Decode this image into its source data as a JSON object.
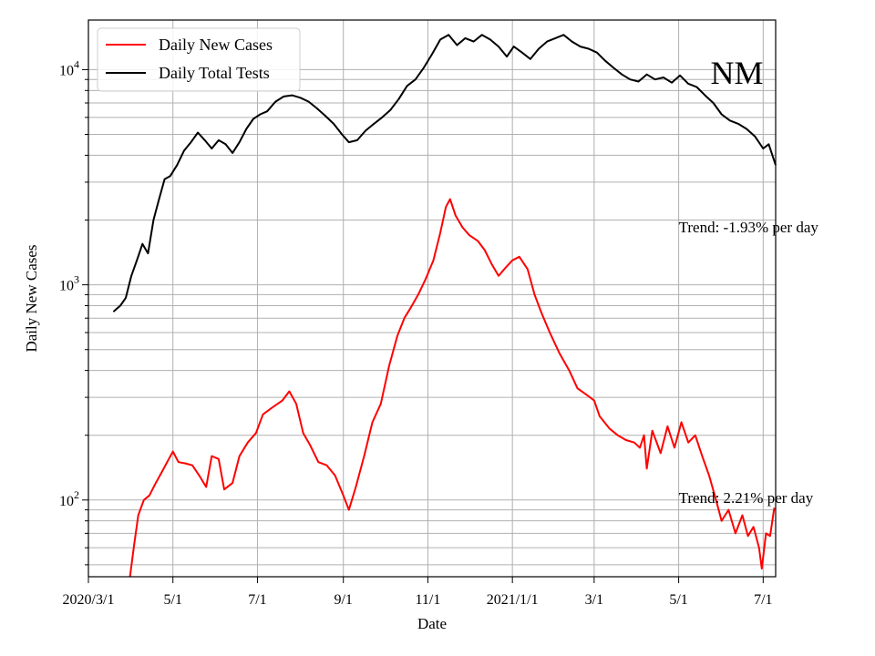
{
  "chart_data": {
    "type": "line",
    "xlabel": "Date",
    "ylabel": "Daily New Cases",
    "yscale": "log",
    "ylim": [
      44,
      17000
    ],
    "xlim": [
      "2020-03-01",
      "2021-07-10"
    ],
    "grid": true,
    "legend_position": "top-left",
    "x_ticks": [
      {
        "date": "2020-03-01",
        "label": "2020/3/1"
      },
      {
        "date": "2020-05-01",
        "label": "5/1"
      },
      {
        "date": "2020-07-01",
        "label": "7/1"
      },
      {
        "date": "2020-09-01",
        "label": "9/1"
      },
      {
        "date": "2020-11-01",
        "label": "11/1"
      },
      {
        "date": "2021-01-01",
        "label": "2021/1/1"
      },
      {
        "date": "2021-03-01",
        "label": "3/1"
      },
      {
        "date": "2021-05-01",
        "label": "5/1"
      },
      {
        "date": "2021-07-01",
        "label": "7/1"
      }
    ],
    "y_ticks": [
      {
        "value": 100,
        "base": "10",
        "exp": "2"
      },
      {
        "value": 1000,
        "base": "10",
        "exp": "3"
      },
      {
        "value": 10000,
        "base": "10",
        "exp": "4"
      }
    ],
    "series": [
      {
        "name": "Daily New Cases",
        "color": "#ff0000",
        "points": [
          [
            "2020-03-31",
            44
          ],
          [
            "2020-04-03",
            62
          ],
          [
            "2020-04-06",
            85
          ],
          [
            "2020-04-10",
            100
          ],
          [
            "2020-04-14",
            105
          ],
          [
            "2020-04-18",
            118
          ],
          [
            "2020-04-23",
            135
          ],
          [
            "2020-04-28",
            155
          ],
          [
            "2020-05-01",
            168
          ],
          [
            "2020-05-05",
            150
          ],
          [
            "2020-05-10",
            148
          ],
          [
            "2020-05-15",
            145
          ],
          [
            "2020-05-20",
            130
          ],
          [
            "2020-05-25",
            115
          ],
          [
            "2020-05-29",
            160
          ],
          [
            "2020-06-03",
            155
          ],
          [
            "2020-06-07",
            112
          ],
          [
            "2020-06-13",
            120
          ],
          [
            "2020-06-18",
            160
          ],
          [
            "2020-06-24",
            185
          ],
          [
            "2020-06-30",
            205
          ],
          [
            "2020-07-05",
            250
          ],
          [
            "2020-07-12",
            270
          ],
          [
            "2020-07-19",
            290
          ],
          [
            "2020-07-24",
            320
          ],
          [
            "2020-07-29",
            280
          ],
          [
            "2020-08-03",
            205
          ],
          [
            "2020-08-08",
            180
          ],
          [
            "2020-08-14",
            150
          ],
          [
            "2020-08-20",
            145
          ],
          [
            "2020-08-26",
            130
          ],
          [
            "2020-09-01",
            105
          ],
          [
            "2020-09-05",
            90
          ],
          [
            "2020-09-10",
            115
          ],
          [
            "2020-09-16",
            160
          ],
          [
            "2020-09-22",
            230
          ],
          [
            "2020-09-28",
            280
          ],
          [
            "2020-10-04",
            420
          ],
          [
            "2020-10-10",
            580
          ],
          [
            "2020-10-15",
            700
          ],
          [
            "2020-10-20",
            790
          ],
          [
            "2020-10-25",
            900
          ],
          [
            "2020-10-30",
            1050
          ],
          [
            "2020-11-05",
            1300
          ],
          [
            "2020-11-10",
            1750
          ],
          [
            "2020-11-14",
            2300
          ],
          [
            "2020-11-17",
            2500
          ],
          [
            "2020-11-21",
            2100
          ],
          [
            "2020-11-26",
            1850
          ],
          [
            "2020-12-01",
            1700
          ],
          [
            "2020-12-07",
            1600
          ],
          [
            "2020-12-12",
            1450
          ],
          [
            "2020-12-17",
            1250
          ],
          [
            "2020-12-22",
            1100
          ],
          [
            "2020-12-27",
            1200
          ],
          [
            "2021-01-01",
            1300
          ],
          [
            "2021-01-06",
            1350
          ],
          [
            "2021-01-12",
            1180
          ],
          [
            "2021-01-17",
            900
          ],
          [
            "2021-01-22",
            740
          ],
          [
            "2021-01-28",
            600
          ],
          [
            "2021-02-04",
            480
          ],
          [
            "2021-02-11",
            400
          ],
          [
            "2021-02-17",
            330
          ],
          [
            "2021-02-23",
            310
          ],
          [
            "2021-03-01",
            290
          ],
          [
            "2021-03-05",
            245
          ],
          [
            "2021-03-12",
            215
          ],
          [
            "2021-03-18",
            200
          ],
          [
            "2021-03-24",
            190
          ],
          [
            "2021-03-30",
            185
          ],
          [
            "2021-04-03",
            175
          ],
          [
            "2021-04-06",
            200
          ],
          [
            "2021-04-08",
            140
          ],
          [
            "2021-04-12",
            210
          ],
          [
            "2021-04-18",
            165
          ],
          [
            "2021-04-23",
            220
          ],
          [
            "2021-04-28",
            175
          ],
          [
            "2021-05-03",
            230
          ],
          [
            "2021-05-08",
            185
          ],
          [
            "2021-05-13",
            200
          ],
          [
            "2021-05-18",
            160
          ],
          [
            "2021-05-23",
            130
          ],
          [
            "2021-05-28",
            100
          ],
          [
            "2021-06-01",
            80
          ],
          [
            "2021-06-06",
            90
          ],
          [
            "2021-06-11",
            70
          ],
          [
            "2021-06-16",
            85
          ],
          [
            "2021-06-20",
            68
          ],
          [
            "2021-06-24",
            75
          ],
          [
            "2021-06-28",
            60
          ],
          [
            "2021-06-30",
            48
          ],
          [
            "2021-07-03",
            70
          ],
          [
            "2021-07-06",
            68
          ],
          [
            "2021-07-09",
            92
          ]
        ]
      },
      {
        "name": "Daily Total Tests",
        "color": "#000000",
        "points": [
          [
            "2020-03-19",
            750
          ],
          [
            "2020-03-24",
            800
          ],
          [
            "2020-03-28",
            870
          ],
          [
            "2020-04-01",
            1100
          ],
          [
            "2020-04-05",
            1300
          ],
          [
            "2020-04-09",
            1550
          ],
          [
            "2020-04-13",
            1400
          ],
          [
            "2020-04-17",
            2000
          ],
          [
            "2020-04-21",
            2500
          ],
          [
            "2020-04-25",
            3100
          ],
          [
            "2020-04-29",
            3200
          ],
          [
            "2020-05-04",
            3600
          ],
          [
            "2020-05-09",
            4200
          ],
          [
            "2020-05-14",
            4600
          ],
          [
            "2020-05-19",
            5100
          ],
          [
            "2020-05-24",
            4700
          ],
          [
            "2020-05-29",
            4300
          ],
          [
            "2020-06-03",
            4700
          ],
          [
            "2020-06-08",
            4500
          ],
          [
            "2020-06-13",
            4100
          ],
          [
            "2020-06-18",
            4600
          ],
          [
            "2020-06-23",
            5300
          ],
          [
            "2020-06-28",
            5900
          ],
          [
            "2020-07-03",
            6200
          ],
          [
            "2020-07-08",
            6400
          ],
          [
            "2020-07-14",
            7100
          ],
          [
            "2020-07-20",
            7500
          ],
          [
            "2020-07-26",
            7600
          ],
          [
            "2020-08-01",
            7400
          ],
          [
            "2020-08-07",
            7100
          ],
          [
            "2020-08-13",
            6600
          ],
          [
            "2020-08-19",
            6100
          ],
          [
            "2020-08-25",
            5600
          ],
          [
            "2020-08-31",
            5000
          ],
          [
            "2020-09-05",
            4600
          ],
          [
            "2020-09-11",
            4700
          ],
          [
            "2020-09-17",
            5200
          ],
          [
            "2020-09-23",
            5600
          ],
          [
            "2020-09-29",
            6000
          ],
          [
            "2020-10-05",
            6500
          ],
          [
            "2020-10-11",
            7300
          ],
          [
            "2020-10-17",
            8400
          ],
          [
            "2020-10-23",
            9000
          ],
          [
            "2020-10-29",
            10200
          ],
          [
            "2020-11-04",
            11800
          ],
          [
            "2020-11-10",
            13800
          ],
          [
            "2020-11-16",
            14500
          ],
          [
            "2020-11-22",
            13000
          ],
          [
            "2020-11-28",
            14000
          ],
          [
            "2020-12-04",
            13500
          ],
          [
            "2020-12-10",
            14500
          ],
          [
            "2020-12-16",
            13800
          ],
          [
            "2020-12-22",
            12800
          ],
          [
            "2020-12-28",
            11500
          ],
          [
            "2021-01-02",
            12800
          ],
          [
            "2021-01-08",
            12000
          ],
          [
            "2021-01-14",
            11200
          ],
          [
            "2021-01-20",
            12500
          ],
          [
            "2021-01-26",
            13500
          ],
          [
            "2021-02-01",
            14000
          ],
          [
            "2021-02-07",
            14500
          ],
          [
            "2021-02-13",
            13500
          ],
          [
            "2021-02-19",
            12800
          ],
          [
            "2021-02-25",
            12500
          ],
          [
            "2021-03-03",
            12000
          ],
          [
            "2021-03-09",
            11000
          ],
          [
            "2021-03-15",
            10200
          ],
          [
            "2021-03-21",
            9500
          ],
          [
            "2021-03-27",
            9000
          ],
          [
            "2021-04-02",
            8800
          ],
          [
            "2021-04-08",
            9500
          ],
          [
            "2021-04-14",
            9000
          ],
          [
            "2021-04-20",
            9200
          ],
          [
            "2021-04-26",
            8700
          ],
          [
            "2021-05-02",
            9400
          ],
          [
            "2021-05-08",
            8600
          ],
          [
            "2021-05-14",
            8300
          ],
          [
            "2021-05-20",
            7600
          ],
          [
            "2021-05-26",
            7000
          ],
          [
            "2021-06-01",
            6200
          ],
          [
            "2021-06-07",
            5800
          ],
          [
            "2021-06-13",
            5600
          ],
          [
            "2021-06-19",
            5300
          ],
          [
            "2021-06-25",
            4900
          ],
          [
            "2021-07-01",
            4300
          ],
          [
            "2021-07-05",
            4500
          ],
          [
            "2021-07-10",
            3600
          ]
        ]
      }
    ],
    "annotations": [
      {
        "text": "Trend: -1.93% per day",
        "date": "2021-05-01",
        "value": 1750
      },
      {
        "text": "Trend: 2.21% per day",
        "date": "2021-05-01",
        "value": 97
      },
      {
        "text": "NM",
        "date": "2021-05-24",
        "value": 8600
      }
    ]
  }
}
